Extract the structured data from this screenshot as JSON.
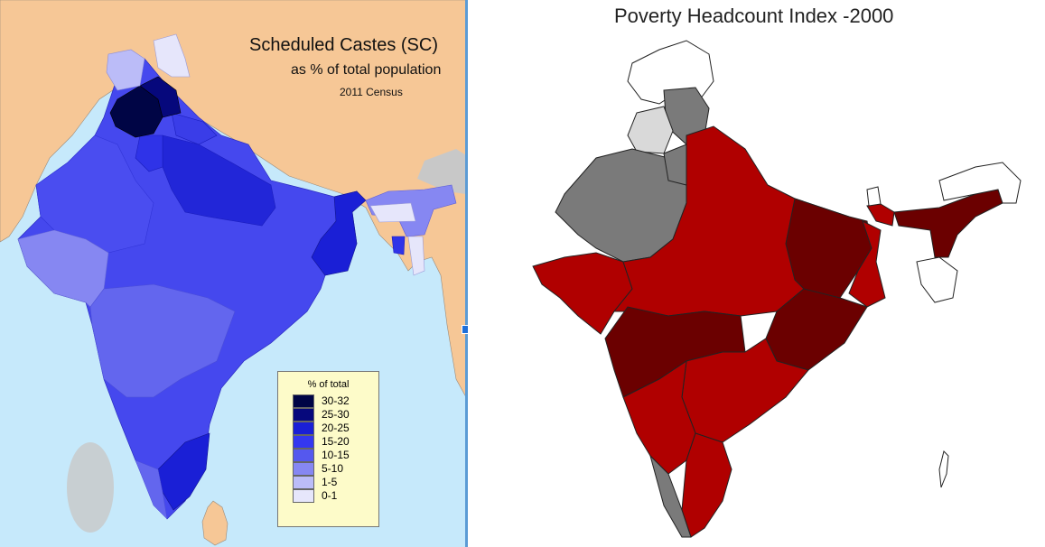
{
  "left_map": {
    "title": "Scheduled Castes (SC)",
    "subtitle": "as % of total population",
    "census": "2011 Census",
    "legend": {
      "title": "% of total",
      "items": [
        {
          "label": "30-32",
          "color": "#000545"
        },
        {
          "label": "25-30",
          "color": "#06087c"
        },
        {
          "label": "20-25",
          "color": "#1a1fd6"
        },
        {
          "label": "15-20",
          "color": "#3437f0"
        },
        {
          "label": "10-15",
          "color": "#5558ee"
        },
        {
          "label": "5-10",
          "color": "#8687f2"
        },
        {
          "label": "1-5",
          "color": "#bbbcf8"
        },
        {
          "label": "0-1",
          "color": "#e6e6fb"
        }
      ]
    },
    "colors": {
      "land": "#f6c796",
      "sea": "#c6e9fb",
      "sri_lanka": "#f6c796",
      "disputed": "#c8c8c8"
    }
  },
  "right_map": {
    "title": "Poverty Headcount Index -2000",
    "colors": {
      "very_high": "#6b0000",
      "high": "#b00000",
      "medium": "#7a7a7a",
      "low": "#d9d9d9",
      "no_data": "#ffffff",
      "border": "#222222"
    }
  }
}
